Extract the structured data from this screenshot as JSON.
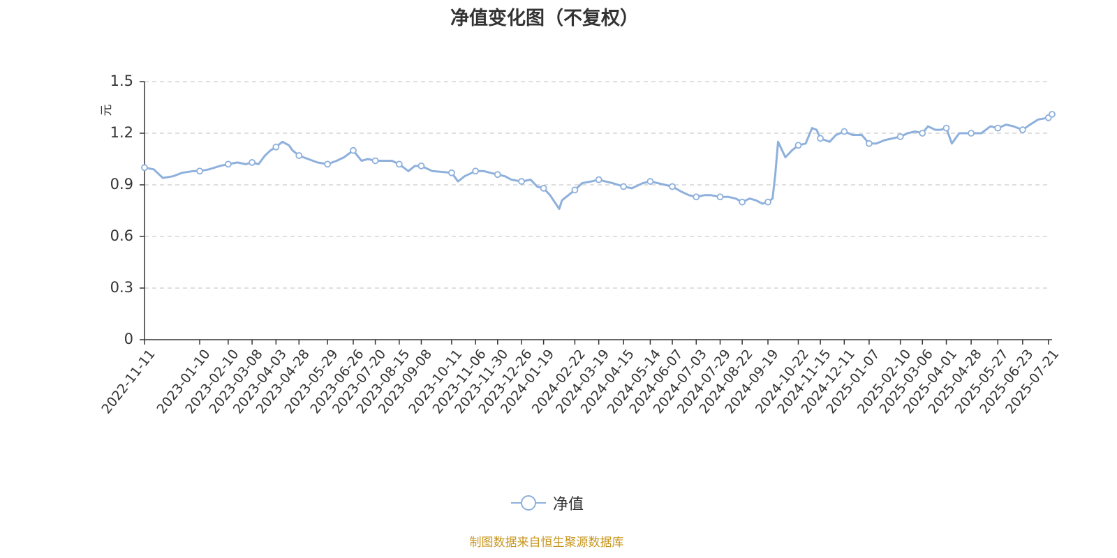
{
  "title": "净值变化图（不复权）",
  "source": "制图数据来自恒生聚源数据库",
  "colors": {
    "line": "#8EB0DC",
    "unit": "#E02020",
    "source": "#C8961E",
    "grid": "#CCCCCC",
    "axis": "#333333"
  },
  "chart_data": {
    "type": "line",
    "title": "净值变化图（不复权）",
    "ylabel": "元",
    "ylim": [
      0,
      1.5
    ],
    "yticks": [
      "0",
      "0.3",
      "0.6",
      "0.9",
      "1.2",
      "1.5"
    ],
    "xticks": [
      "2022-11-11",
      "2023-01-10",
      "2023-02-10",
      "2023-03-08",
      "2023-04-03",
      "2023-04-28",
      "2023-05-29",
      "2023-06-26",
      "2023-07-20",
      "2023-08-15",
      "2023-09-08",
      "2023-10-11",
      "2023-11-06",
      "2023-11-30",
      "2023-12-26",
      "2024-01-19",
      "2024-02-22",
      "2024-03-19",
      "2024-04-15",
      "2024-05-14",
      "2024-06-07",
      "2024-07-03",
      "2024-07-29",
      "2024-08-22",
      "2024-09-19",
      "2024-10-22",
      "2024-11-15",
      "2024-12-11",
      "2025-01-07",
      "2025-02-10",
      "2025-03-06",
      "2025-04-01",
      "2025-04-28",
      "2025-05-27",
      "2025-06-23",
      "2025-07-21"
    ],
    "grid": true,
    "legend_position": "bottom-center",
    "series": [
      {
        "name": "净值",
        "x": [
          "2022-11-11",
          "2022-11-21",
          "2022-12-01",
          "2022-12-12",
          "2022-12-22",
          "2023-01-03",
          "2023-01-10",
          "2023-01-20",
          "2023-02-01",
          "2023-02-10",
          "2023-02-20",
          "2023-03-01",
          "2023-03-08",
          "2023-03-15",
          "2023-03-22",
          "2023-03-28",
          "2023-04-03",
          "2023-04-10",
          "2023-04-17",
          "2023-04-21",
          "2023-04-28",
          "2023-05-08",
          "2023-05-18",
          "2023-05-29",
          "2023-06-08",
          "2023-06-16",
          "2023-06-26",
          "2023-07-05",
          "2023-07-12",
          "2023-07-20",
          "2023-07-28",
          "2023-08-07",
          "2023-08-15",
          "2023-08-25",
          "2023-09-01",
          "2023-09-08",
          "2023-09-20",
          "2023-10-11",
          "2023-10-18",
          "2023-10-25",
          "2023-11-06",
          "2023-11-15",
          "2023-11-22",
          "2023-11-30",
          "2023-12-08",
          "2023-12-15",
          "2023-12-26",
          "2024-01-05",
          "2024-01-12",
          "2024-01-19",
          "2024-01-26",
          "2024-02-05",
          "2024-02-08",
          "2024-02-22",
          "2024-03-01",
          "2024-03-11",
          "2024-03-19",
          "2024-03-26",
          "2024-04-03",
          "2024-04-15",
          "2024-04-24",
          "2024-05-06",
          "2024-05-14",
          "2024-05-22",
          "2024-05-30",
          "2024-06-07",
          "2024-06-17",
          "2024-06-25",
          "2024-07-03",
          "2024-07-12",
          "2024-07-19",
          "2024-07-29",
          "2024-08-07",
          "2024-08-15",
          "2024-08-22",
          "2024-08-30",
          "2024-09-06",
          "2024-09-13",
          "2024-09-19",
          "2024-09-24",
          "2024-09-27",
          "2024-09-30",
          "2024-10-08",
          "2024-10-15",
          "2024-10-22",
          "2024-10-30",
          "2024-11-06",
          "2024-11-11",
          "2024-11-15",
          "2024-11-25",
          "2024-12-02",
          "2024-12-11",
          "2024-12-20",
          "2024-12-30",
          "2025-01-07",
          "2025-01-15",
          "2025-01-24",
          "2025-02-10",
          "2025-02-18",
          "2025-02-26",
          "2025-03-06",
          "2025-03-12",
          "2025-03-20",
          "2025-03-26",
          "2025-04-01",
          "2025-04-07",
          "2025-04-15",
          "2025-04-28",
          "2025-05-09",
          "2025-05-19",
          "2025-05-27",
          "2025-06-05",
          "2025-06-13",
          "2025-06-23",
          "2025-07-01",
          "2025-07-10",
          "2025-07-21",
          "2025-07-25"
        ],
        "values": [
          1.0,
          0.99,
          0.94,
          0.95,
          0.97,
          0.98,
          0.98,
          0.99,
          1.01,
          1.02,
          1.03,
          1.02,
          1.03,
          1.02,
          1.07,
          1.1,
          1.12,
          1.15,
          1.13,
          1.1,
          1.07,
          1.05,
          1.03,
          1.02,
          1.04,
          1.06,
          1.1,
          1.04,
          1.05,
          1.04,
          1.04,
          1.04,
          1.02,
          0.98,
          1.01,
          1.01,
          0.98,
          0.97,
          0.92,
          0.95,
          0.98,
          0.98,
          0.97,
          0.96,
          0.95,
          0.93,
          0.92,
          0.93,
          0.89,
          0.88,
          0.84,
          0.76,
          0.81,
          0.87,
          0.91,
          0.92,
          0.93,
          0.92,
          0.91,
          0.89,
          0.88,
          0.91,
          0.92,
          0.91,
          0.9,
          0.89,
          0.86,
          0.84,
          0.83,
          0.84,
          0.84,
          0.83,
          0.83,
          0.82,
          0.8,
          0.82,
          0.81,
          0.79,
          0.8,
          0.82,
          0.96,
          1.15,
          1.06,
          1.1,
          1.13,
          1.14,
          1.23,
          1.22,
          1.17,
          1.15,
          1.19,
          1.21,
          1.19,
          1.19,
          1.14,
          1.14,
          1.16,
          1.18,
          1.2,
          1.21,
          1.2,
          1.24,
          1.22,
          1.22,
          1.23,
          1.14,
          1.2,
          1.2,
          1.2,
          1.24,
          1.23,
          1.25,
          1.24,
          1.22,
          1.25,
          1.28,
          1.29,
          1.31
        ]
      }
    ]
  }
}
